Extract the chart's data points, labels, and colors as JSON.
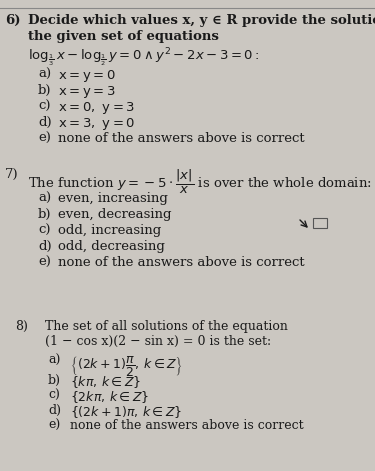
{
  "bg_color": "#cbc7c1",
  "text_color": "#1a1a1a",
  "fs_main": 9.5,
  "fs_q8": 9.0,
  "q6_num": "6)",
  "q6_header1": "Decide which values x, y ∈ R provide the solution of",
  "q6_header2": "the given set of equations",
  "q6_eq": "log_{½/3} x − log_{½/2} y = 0 ∧ y² − 2x − 3 = 0:",
  "q6_opts": [
    [
      "a)",
      "x = y = 0"
    ],
    [
      "b)",
      "x = y = 3"
    ],
    [
      "c)",
      "x = 0, y = 3"
    ],
    [
      "d)",
      "x = 3, y = 0"
    ],
    [
      "e)",
      "none of the answers above is correct"
    ]
  ],
  "q7_num": "7)",
  "q7_text": "The function y = −5 · |x|/x is over the whole domain:",
  "q7_opts": [
    [
      "a)",
      "even, increasing"
    ],
    [
      "b)",
      "even, decreasing"
    ],
    [
      "c)",
      "odd, increasing"
    ],
    [
      "d)",
      "odd, decreasing"
    ],
    [
      "e)",
      "none of the answers above is correct"
    ]
  ],
  "q8_num": "8)",
  "q8_header1": "The set of all solutions of the equation",
  "q8_header2": "(1 − cos x)(2 − sin x) = 0 is the set:",
  "q8_opts": [
    [
      "a)",
      "{(2k+1)π/2, k ∈ Z}"
    ],
    [
      "b)",
      "{kπ, k ∈ Z}"
    ],
    [
      "c)",
      "{2kπ, k ∈ Z}"
    ],
    [
      "d)",
      "{(2k+1)π, k ∈ Z}"
    ],
    [
      "e)",
      "none of the answers above is correct"
    ]
  ]
}
